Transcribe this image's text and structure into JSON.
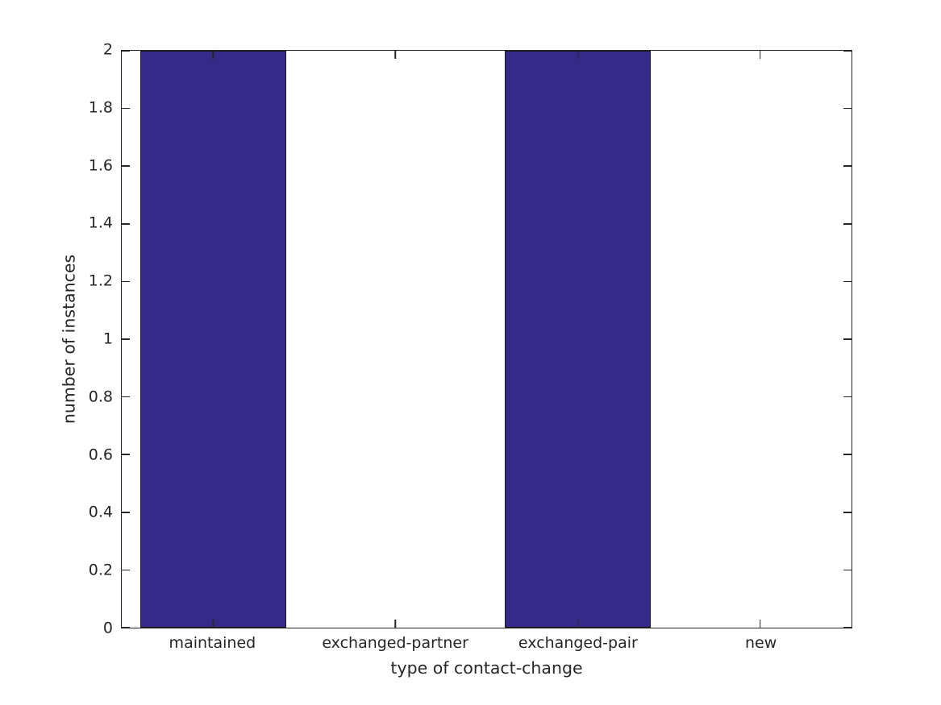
{
  "figure": {
    "background": "#ffffff",
    "text_color": "#262626"
  },
  "chart_data": {
    "type": "bar",
    "title": "",
    "categories": [
      "maintained",
      "exchanged-partner",
      "exchanged-pair",
      "new"
    ],
    "values": [
      2,
      0,
      2,
      0
    ],
    "xlabel": "type of contact-change",
    "ylabel": "number of instances",
    "ylim": [
      0,
      2
    ],
    "ytick_labels": [
      "0",
      "0.2",
      "0.4",
      "0.6",
      "0.8",
      "1",
      "1.2",
      "1.4",
      "1.6",
      "1.8",
      "2"
    ],
    "ytick_values": [
      0,
      0.2,
      0.4,
      0.6,
      0.8,
      1,
      1.2,
      1.4,
      1.6,
      1.8,
      2
    ],
    "bar_width_fraction": 0.8,
    "bar_color": "#352a87",
    "bar_edge_color": "#1a1a1a",
    "axis_color": "#262626",
    "grid": "off",
    "legend_position": "none",
    "tick_direction": "in",
    "box": "on"
  }
}
